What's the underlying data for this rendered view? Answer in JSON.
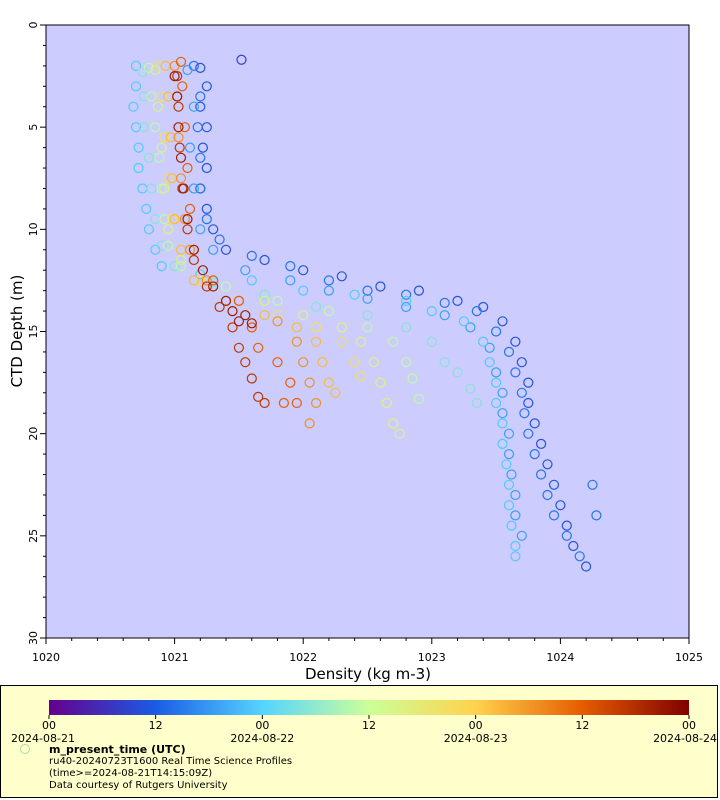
{
  "chart_data": {
    "type": "scatter",
    "title": "",
    "xlabel": "Density (kg m-3)",
    "ylabel": "CTD Depth (m)",
    "xlim": [
      1020,
      1025
    ],
    "ylim": [
      0,
      30
    ],
    "y_inverted": true,
    "x_ticks": [
      "1020",
      "1021",
      "1022",
      "1023",
      "1024",
      "1025"
    ],
    "y_ticks": [
      "0",
      "5",
      "10",
      "15",
      "20",
      "25",
      "30"
    ],
    "plot_background": "#ccccff",
    "marker": "open-circle",
    "color_variable": "m_present_time (UTC)",
    "series": [
      {
        "time_frac": 0.15,
        "points": [
          [
            1021.2,
            2.1
          ],
          [
            1021.25,
            3.0
          ],
          [
            1021.2,
            4.0
          ],
          [
            1021.25,
            5.0
          ],
          [
            1021.22,
            6.0
          ],
          [
            1021.25,
            7.0
          ],
          [
            1021.2,
            8.0
          ],
          [
            1021.25,
            9.0
          ],
          [
            1021.3,
            10.0
          ],
          [
            1021.4,
            11.0
          ],
          [
            1021.7,
            11.5
          ],
          [
            1022.0,
            12.0
          ],
          [
            1022.3,
            12.3
          ],
          [
            1022.6,
            12.8
          ],
          [
            1022.9,
            13.0
          ],
          [
            1023.2,
            13.5
          ],
          [
            1023.4,
            13.8
          ],
          [
            1023.55,
            14.5
          ],
          [
            1023.65,
            15.5
          ],
          [
            1023.7,
            16.5
          ],
          [
            1023.75,
            17.5
          ],
          [
            1023.75,
            18.5
          ],
          [
            1023.8,
            19.5
          ],
          [
            1023.85,
            20.5
          ],
          [
            1023.9,
            21.5
          ],
          [
            1023.95,
            22.5
          ],
          [
            1024.0,
            23.5
          ],
          [
            1024.05,
            24.5
          ],
          [
            1024.1,
            25.5
          ],
          [
            1024.2,
            26.5
          ]
        ]
      },
      {
        "time_frac": 0.2,
        "points": [
          [
            1021.15,
            2.0
          ],
          [
            1021.2,
            3.5
          ],
          [
            1021.18,
            5.0
          ],
          [
            1021.2,
            6.5
          ],
          [
            1021.2,
            8.0
          ],
          [
            1021.25,
            9.5
          ],
          [
            1021.35,
            10.5
          ],
          [
            1021.6,
            11.3
          ],
          [
            1021.9,
            11.8
          ],
          [
            1022.2,
            12.5
          ],
          [
            1022.5,
            13.0
          ],
          [
            1022.8,
            13.2
          ],
          [
            1023.1,
            13.6
          ],
          [
            1023.35,
            14.0
          ],
          [
            1023.5,
            15.0
          ],
          [
            1023.6,
            16.0
          ],
          [
            1023.65,
            17.0
          ],
          [
            1023.7,
            18.0
          ],
          [
            1023.72,
            19.0
          ],
          [
            1023.75,
            20.0
          ],
          [
            1023.8,
            21.0
          ],
          [
            1023.85,
            22.0
          ],
          [
            1023.9,
            23.0
          ],
          [
            1023.95,
            24.0
          ],
          [
            1024.05,
            25.0
          ],
          [
            1024.15,
            26.0
          ],
          [
            1024.25,
            22.5
          ],
          [
            1024.28,
            24.0
          ]
        ]
      },
      {
        "time_frac": 0.26,
        "points": [
          [
            1021.1,
            2.2
          ],
          [
            1021.15,
            4.0
          ],
          [
            1021.12,
            6.0
          ],
          [
            1021.15,
            8.0
          ],
          [
            1021.2,
            10.0
          ],
          [
            1021.3,
            11.0
          ],
          [
            1021.55,
            12.0
          ],
          [
            1021.9,
            12.5
          ],
          [
            1022.2,
            13.0
          ],
          [
            1022.5,
            13.4
          ],
          [
            1022.8,
            13.8
          ],
          [
            1023.1,
            14.2
          ],
          [
            1023.3,
            14.8
          ],
          [
            1023.45,
            15.8
          ],
          [
            1023.5,
            17.0
          ],
          [
            1023.55,
            18.0
          ],
          [
            1023.55,
            19.0
          ],
          [
            1023.6,
            20.0
          ],
          [
            1023.6,
            21.0
          ],
          [
            1023.62,
            22.0
          ],
          [
            1023.65,
            23.0
          ],
          [
            1023.65,
            24.0
          ],
          [
            1023.7,
            25.0
          ]
        ]
      },
      {
        "time_frac": 0.32,
        "points": [
          [
            1020.7,
            2.0
          ],
          [
            1020.7,
            3.0
          ],
          [
            1020.68,
            4.0
          ],
          [
            1020.7,
            5.0
          ],
          [
            1020.72,
            6.0
          ],
          [
            1020.72,
            7.0
          ],
          [
            1020.75,
            8.0
          ],
          [
            1020.78,
            9.0
          ],
          [
            1020.8,
            10.0
          ],
          [
            1020.85,
            11.0
          ],
          [
            1020.9,
            11.8
          ],
          [
            1021.2,
            12.2
          ],
          [
            1021.6,
            12.5
          ],
          [
            1022.0,
            13.0
          ],
          [
            1022.4,
            13.2
          ],
          [
            1022.8,
            13.5
          ],
          [
            1023.0,
            14.0
          ],
          [
            1023.25,
            14.5
          ],
          [
            1023.4,
            15.5
          ],
          [
            1023.45,
            16.5
          ],
          [
            1023.5,
            17.5
          ],
          [
            1023.5,
            18.5
          ],
          [
            1023.55,
            19.5
          ],
          [
            1023.55,
            20.5
          ],
          [
            1023.58,
            21.5
          ],
          [
            1023.6,
            22.5
          ],
          [
            1023.6,
            23.5
          ],
          [
            1023.62,
            24.5
          ],
          [
            1023.65,
            25.5
          ],
          [
            1023.65,
            26.0
          ]
        ]
      },
      {
        "time_frac": 0.4,
        "points": [
          [
            1020.75,
            2.3
          ],
          [
            1020.76,
            3.5
          ],
          [
            1020.76,
            5.0
          ],
          [
            1020.8,
            6.5
          ],
          [
            1020.82,
            8.0
          ],
          [
            1020.85,
            9.5
          ],
          [
            1020.9,
            10.8
          ],
          [
            1021.0,
            11.8
          ],
          [
            1021.3,
            12.6
          ],
          [
            1021.7,
            13.2
          ],
          [
            1022.1,
            13.8
          ],
          [
            1022.5,
            14.2
          ],
          [
            1022.8,
            14.8
          ],
          [
            1023.0,
            15.5
          ],
          [
            1023.1,
            16.5
          ],
          [
            1023.2,
            17.0
          ],
          [
            1023.3,
            17.8
          ],
          [
            1023.35,
            18.5
          ]
        ]
      },
      {
        "time_frac": 0.48,
        "points": [
          [
            1020.8,
            2.1
          ],
          [
            1020.82,
            3.5
          ],
          [
            1020.85,
            5.0
          ],
          [
            1020.88,
            6.5
          ],
          [
            1020.9,
            8.0
          ],
          [
            1020.92,
            9.5
          ],
          [
            1020.95,
            10.8
          ],
          [
            1021.05,
            11.8
          ],
          [
            1021.4,
            12.8
          ],
          [
            1021.8,
            13.5
          ],
          [
            1022.2,
            14.0
          ],
          [
            1022.5,
            14.8
          ],
          [
            1022.7,
            15.5
          ],
          [
            1022.8,
            16.5
          ],
          [
            1022.85,
            17.3
          ],
          [
            1022.9,
            18.3
          ]
        ]
      },
      {
        "time_frac": 0.55,
        "points": [
          [
            1020.85,
            2.2
          ],
          [
            1020.87,
            4.0
          ],
          [
            1020.9,
            6.0
          ],
          [
            1020.92,
            8.0
          ],
          [
            1020.95,
            10.0
          ],
          [
            1021.05,
            11.5
          ],
          [
            1021.3,
            12.8
          ],
          [
            1021.7,
            13.5
          ],
          [
            1022.0,
            14.2
          ],
          [
            1022.3,
            14.8
          ],
          [
            1022.45,
            15.5
          ],
          [
            1022.55,
            16.5
          ],
          [
            1022.6,
            17.5
          ],
          [
            1022.65,
            18.5
          ],
          [
            1022.7,
            19.5
          ],
          [
            1022.75,
            20.0
          ]
        ]
      },
      {
        "time_frac": 0.62,
        "points": [
          [
            1020.88,
            2.0
          ],
          [
            1020.9,
            3.5
          ],
          [
            1020.92,
            5.5
          ],
          [
            1020.95,
            7.5
          ],
          [
            1020.98,
            9.5
          ],
          [
            1021.05,
            11.0
          ],
          [
            1021.2,
            12.5
          ],
          [
            1021.5,
            13.5
          ],
          [
            1021.8,
            14.2
          ],
          [
            1022.1,
            14.8
          ],
          [
            1022.3,
            15.5
          ],
          [
            1022.4,
            16.5
          ],
          [
            1022.45,
            17.2
          ]
        ]
      },
      {
        "time_frac": 0.7,
        "points": [
          [
            1020.93,
            2.0
          ],
          [
            1020.95,
            3.5
          ],
          [
            1020.97,
            5.5
          ],
          [
            1020.98,
            7.5
          ],
          [
            1021.0,
            9.5
          ],
          [
            1021.05,
            11.0
          ],
          [
            1021.15,
            12.5
          ],
          [
            1021.4,
            13.5
          ],
          [
            1021.7,
            14.2
          ],
          [
            1021.95,
            14.8
          ],
          [
            1022.1,
            15.5
          ],
          [
            1022.15,
            16.5
          ],
          [
            1022.2,
            17.5
          ],
          [
            1022.25,
            18.0
          ]
        ]
      },
      {
        "time_frac": 0.76,
        "points": [
          [
            1021.0,
            2.0
          ],
          [
            1021.02,
            3.5
          ],
          [
            1021.03,
            5.5
          ],
          [
            1021.05,
            7.5
          ],
          [
            1021.08,
            9.5
          ],
          [
            1021.12,
            11.0
          ],
          [
            1021.25,
            12.5
          ],
          [
            1021.5,
            13.5
          ],
          [
            1021.8,
            14.5
          ],
          [
            1021.95,
            15.5
          ],
          [
            1022.0,
            16.5
          ],
          [
            1022.05,
            17.5
          ],
          [
            1022.1,
            18.5
          ],
          [
            1022.05,
            19.5
          ]
        ]
      },
      {
        "time_frac": 0.83,
        "points": [
          [
            1021.05,
            1.8
          ],
          [
            1021.06,
            3.0
          ],
          [
            1021.08,
            5.0
          ],
          [
            1021.1,
            7.0
          ],
          [
            1021.12,
            9.0
          ],
          [
            1021.15,
            11.0
          ],
          [
            1021.3,
            12.5
          ],
          [
            1021.5,
            13.5
          ],
          [
            1021.6,
            14.8
          ],
          [
            1021.65,
            15.8
          ],
          [
            1021.8,
            16.5
          ],
          [
            1021.9,
            17.5
          ],
          [
            1021.95,
            18.5
          ],
          [
            1021.85,
            18.5
          ]
        ]
      },
      {
        "time_frac": 0.9,
        "points": [
          [
            1021.02,
            2.5
          ],
          [
            1021.03,
            4.0
          ],
          [
            1021.04,
            6.0
          ],
          [
            1021.06,
            8.0
          ],
          [
            1021.1,
            10.0
          ],
          [
            1021.15,
            11.5
          ],
          [
            1021.25,
            12.8
          ],
          [
            1021.35,
            13.8
          ],
          [
            1021.45,
            14.8
          ],
          [
            1021.5,
            15.8
          ],
          [
            1021.55,
            16.5
          ],
          [
            1021.6,
            17.3
          ],
          [
            1021.65,
            18.2
          ],
          [
            1021.7,
            18.5
          ]
        ]
      },
      {
        "time_frac": 0.95,
        "points": [
          [
            1021.0,
            2.5
          ],
          [
            1021.02,
            3.5
          ],
          [
            1021.03,
            5.0
          ],
          [
            1021.05,
            6.5
          ],
          [
            1021.07,
            8.0
          ],
          [
            1021.1,
            9.5
          ],
          [
            1021.15,
            11.0
          ],
          [
            1021.22,
            12.0
          ],
          [
            1021.3,
            12.8
          ],
          [
            1021.4,
            13.5
          ],
          [
            1021.45,
            14.0
          ],
          [
            1021.5,
            14.5
          ],
          [
            1021.55,
            14.2
          ],
          [
            1021.6,
            14.6
          ]
        ]
      }
    ],
    "outlier_point": {
      "x": 1021.52,
      "y": 1.7,
      "time_frac": 0.12
    },
    "colorbar": {
      "label": "m_present_time (UTC)",
      "hour_ticks": [
        "00",
        "12",
        "00",
        "12",
        "00",
        "12",
        "00"
      ],
      "date_ticks": [
        "2024-08-21",
        "2024-08-22",
        "2024-08-23",
        "2024-08-24"
      ],
      "stops": [
        "#66008c",
        "#1a5ce6",
        "#55d4ff",
        "#ccff99",
        "#ffd24d",
        "#e65c00",
        "#800000"
      ]
    }
  },
  "legend": {
    "title": "m_present_time (UTC)",
    "line1": "ru40-20240723T1600 Real Time Science Profiles",
    "line2": "(time>=2024-08-21T14:15:09Z)",
    "line3": "Data courtesy of Rutgers University"
  }
}
